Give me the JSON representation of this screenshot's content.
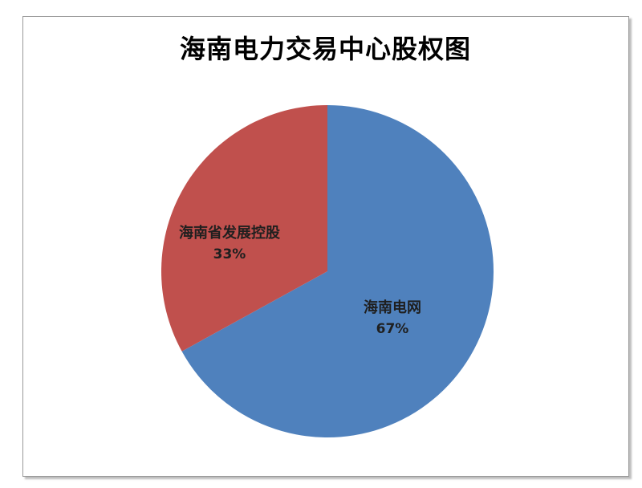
{
  "page": {
    "background_color": "#ffffff"
  },
  "frame": {
    "border_color": "#999999",
    "shadow_color": "#bdbdbd"
  },
  "chart_data": {
    "type": "pie",
    "title": "海南电力交易中心股权图",
    "title_color": "#000000",
    "label_color": "#1f1f1f",
    "legend": "none",
    "data_labels": "inside",
    "start_angle_deg": 0,
    "direction": "clockwise",
    "slices": [
      {
        "label": "海南电网",
        "value": 67,
        "percent_label": "67%",
        "color": "#4F81BD"
      },
      {
        "label": "海南省发展控股",
        "value": 33,
        "percent_label": "33%",
        "color": "#C0504D"
      }
    ]
  }
}
